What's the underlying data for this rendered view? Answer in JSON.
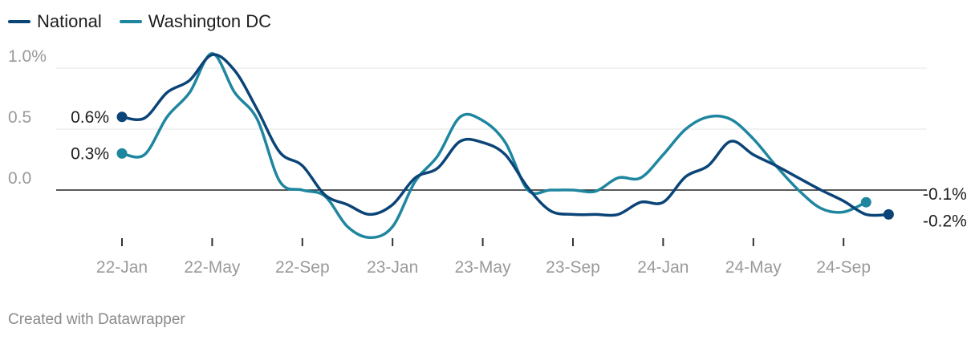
{
  "legend": {
    "national": "National",
    "dc": "Washington DC"
  },
  "footer": "Created with Datawrapper",
  "colors": {
    "national": "#0b4477",
    "dc": "#1f86a0",
    "grid": "#e3e3e3",
    "zero": "#222222",
    "tick_text": "#9a9a9a",
    "label_text": "#1d1d1d"
  },
  "chart_data": {
    "type": "line",
    "x_tick_labels": [
      "22-Jan",
      "22-May",
      "22-Sep",
      "23-Jan",
      "23-May",
      "23-Sep",
      "24-Jan",
      "24-May",
      "24-Sep"
    ],
    "x_tick_dates": [
      "2022-01",
      "2022-05",
      "2022-09",
      "2023-01",
      "2023-05",
      "2023-09",
      "2024-01",
      "2024-05",
      "2024-09"
    ],
    "y_ticks": [
      {
        "value": 1.0,
        "label": "1.0%"
      },
      {
        "value": 0.5,
        "label": "0.5"
      },
      {
        "value": 0.0,
        "label": "0.0"
      }
    ],
    "ylim": [
      -0.4,
      1.15
    ],
    "xlim": [
      "2022-01",
      "2024-12"
    ],
    "grid": true,
    "legend_position": "top-left",
    "series": [
      {
        "name": "National",
        "color_key": "national",
        "start_label": "0.6%",
        "end_label": "-0.2%",
        "points": [
          {
            "x": "2022-01",
            "y": 0.6
          },
          {
            "x": "2022-02",
            "y": 0.59
          },
          {
            "x": "2022-03",
            "y": 0.8
          },
          {
            "x": "2022-04",
            "y": 0.9
          },
          {
            "x": "2022-05",
            "y": 1.11
          },
          {
            "x": "2022-06",
            "y": 0.98
          },
          {
            "x": "2022-07",
            "y": 0.66
          },
          {
            "x": "2022-08",
            "y": 0.31
          },
          {
            "x": "2022-09",
            "y": 0.2
          },
          {
            "x": "2022-10",
            "y": -0.04
          },
          {
            "x": "2022-11",
            "y": -0.12
          },
          {
            "x": "2022-12",
            "y": -0.2
          },
          {
            "x": "2023-01",
            "y": -0.12
          },
          {
            "x": "2023-02",
            "y": 0.1
          },
          {
            "x": "2023-03",
            "y": 0.18
          },
          {
            "x": "2023-04",
            "y": 0.4
          },
          {
            "x": "2023-05",
            "y": 0.39
          },
          {
            "x": "2023-06",
            "y": 0.29
          },
          {
            "x": "2023-07",
            "y": 0.02
          },
          {
            "x": "2023-08",
            "y": -0.17
          },
          {
            "x": "2023-09",
            "y": -0.2
          },
          {
            "x": "2023-10",
            "y": -0.2
          },
          {
            "x": "2023-11",
            "y": -0.2
          },
          {
            "x": "2023-12",
            "y": -0.1
          },
          {
            "x": "2024-01",
            "y": -0.1
          },
          {
            "x": "2024-02",
            "y": 0.11
          },
          {
            "x": "2024-03",
            "y": 0.2
          },
          {
            "x": "2024-04",
            "y": 0.4
          },
          {
            "x": "2024-05",
            "y": 0.29
          },
          {
            "x": "2024-06",
            "y": 0.2
          },
          {
            "x": "2024-07",
            "y": 0.1
          },
          {
            "x": "2024-08",
            "y": 0.0
          },
          {
            "x": "2024-09",
            "y": -0.09
          },
          {
            "x": "2024-10",
            "y": -0.2
          },
          {
            "x": "2024-11",
            "y": -0.2
          }
        ]
      },
      {
        "name": "Washington DC",
        "color_key": "dc",
        "start_label": "0.3%",
        "end_label": "-0.1%",
        "points": [
          {
            "x": "2022-01",
            "y": 0.3
          },
          {
            "x": "2022-02",
            "y": 0.29
          },
          {
            "x": "2022-03",
            "y": 0.6
          },
          {
            "x": "2022-04",
            "y": 0.8
          },
          {
            "x": "2022-05",
            "y": 1.12
          },
          {
            "x": "2022-06",
            "y": 0.8
          },
          {
            "x": "2022-07",
            "y": 0.58
          },
          {
            "x": "2022-08",
            "y": 0.07
          },
          {
            "x": "2022-09",
            "y": 0.0
          },
          {
            "x": "2022-10",
            "y": -0.05
          },
          {
            "x": "2022-11",
            "y": -0.3
          },
          {
            "x": "2022-12",
            "y": -0.39
          },
          {
            "x": "2023-01",
            "y": -0.3
          },
          {
            "x": "2023-02",
            "y": 0.07
          },
          {
            "x": "2023-03",
            "y": 0.28
          },
          {
            "x": "2023-04",
            "y": 0.6
          },
          {
            "x": "2023-05",
            "y": 0.57
          },
          {
            "x": "2023-06",
            "y": 0.39
          },
          {
            "x": "2023-07",
            "y": 0.0
          },
          {
            "x": "2023-08",
            "y": 0.0
          },
          {
            "x": "2023-09",
            "y": 0.0
          },
          {
            "x": "2023-10",
            "y": -0.01
          },
          {
            "x": "2023-11",
            "y": 0.1
          },
          {
            "x": "2023-12",
            "y": 0.1
          },
          {
            "x": "2024-01",
            "y": 0.29
          },
          {
            "x": "2024-02",
            "y": 0.5
          },
          {
            "x": "2024-03",
            "y": 0.6
          },
          {
            "x": "2024-04",
            "y": 0.58
          },
          {
            "x": "2024-05",
            "y": 0.42
          },
          {
            "x": "2024-06",
            "y": 0.2
          },
          {
            "x": "2024-07",
            "y": 0.0
          },
          {
            "x": "2024-08",
            "y": -0.15
          },
          {
            "x": "2024-09",
            "y": -0.18
          },
          {
            "x": "2024-10",
            "y": -0.1
          }
        ]
      }
    ]
  }
}
